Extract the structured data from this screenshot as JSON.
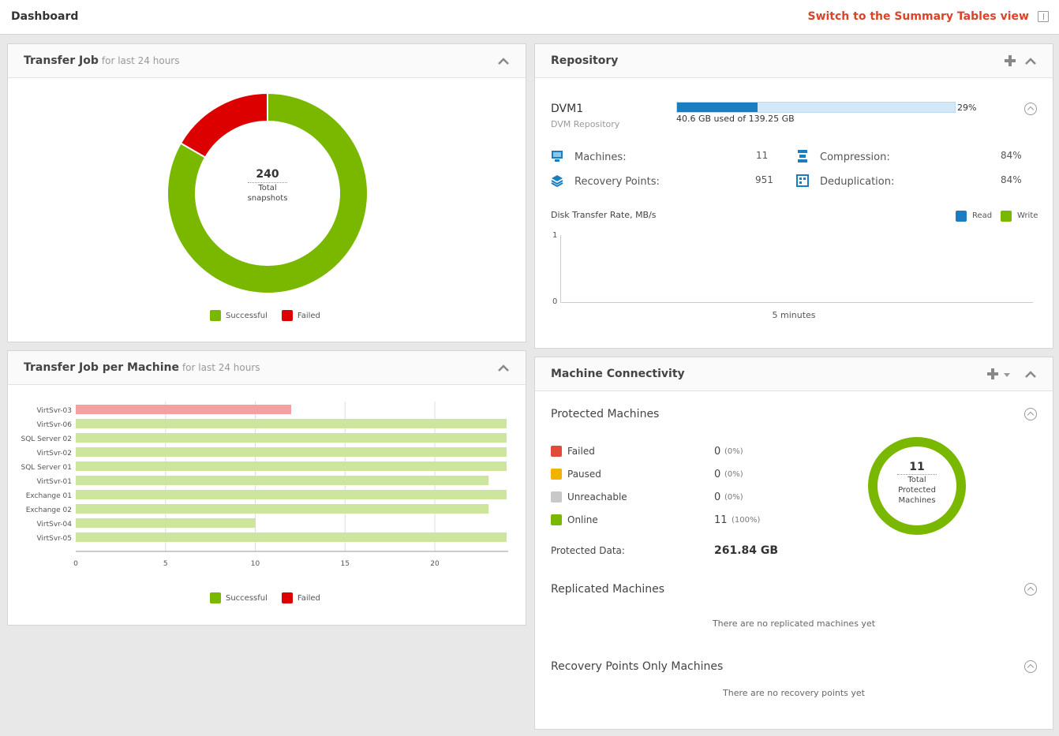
{
  "header": {
    "title": "Dashboard",
    "switch_label": "Switch to the Summary Tables view"
  },
  "transfer_job": {
    "title": "Transfer Job",
    "subtitle": "for last 24 hours",
    "center_value": "240",
    "center_label_1": "Total",
    "center_label_2": "snapshots",
    "legend": [
      "Successful",
      "Failed"
    ],
    "colors": {
      "successful": "#7ab800",
      "failed": "#dc0000"
    }
  },
  "transfer_per_machine": {
    "title": "Transfer Job per Machine",
    "subtitle": "for last 24 hours",
    "legend": [
      "Successful",
      "Failed"
    ]
  },
  "repository": {
    "title": "Repository",
    "name": "DVM1",
    "type": "DVM Repository",
    "usage_percent_label": "29%",
    "usage_fraction": 0.29,
    "usage_text": "40.6 GB used of 139.25 GB",
    "machines_label": "Machines:",
    "machines_value": "11",
    "recovery_points_label": "Recovery Points:",
    "recovery_points_value": "951",
    "compression_label": "Compression:",
    "compression_value": "84%",
    "dedup_label": "Deduplication:",
    "dedup_value": "84%",
    "rate_title": "Disk Transfer Rate, MB/s",
    "rate_legend_read": "Read",
    "rate_legend_write": "Write",
    "rate_y_top": "1",
    "rate_y_bottom": "0",
    "rate_x_label": "5 minutes"
  },
  "connectivity": {
    "title": "Machine Connectivity",
    "protected_title": "Protected Machines",
    "rows": [
      {
        "label": "Failed",
        "value": "0",
        "pct": "(0%)",
        "color": "#e04b3a"
      },
      {
        "label": "Paused",
        "value": "0",
        "pct": "(0%)",
        "color": "#f0b400"
      },
      {
        "label": "Unreachable",
        "value": "0",
        "pct": "(0%)",
        "color": "#c8c8c8"
      },
      {
        "label": "Online",
        "value": "11",
        "pct": "(100%)",
        "color": "#7ab800"
      }
    ],
    "protected_data_label": "Protected Data:",
    "protected_data_value": "261.84 GB",
    "donut_value": "11",
    "donut_label_1": "Total",
    "donut_label_2": "Protected",
    "donut_label_3": "Machines",
    "replicated_title": "Replicated Machines",
    "replicated_empty": "There are no replicated machines yet",
    "rp_only_title": "Recovery Points Only Machines",
    "rp_only_empty": "There are no recovery points yet"
  },
  "chart_data": [
    {
      "type": "pie",
      "title": "",
      "categories": [
        "Successful",
        "Failed"
      ],
      "values": [
        200,
        40
      ],
      "total": 240,
      "colors": [
        "#7ab800",
        "#dc0000"
      ],
      "legend": "bottom"
    },
    {
      "type": "bar",
      "orientation": "horizontal",
      "categories": [
        "VirtSvr-03",
        "VirtSvr-06",
        "SQL Server 02",
        "VirtSvr-02",
        "SQL Server 01",
        "VirtSvr-01",
        "Exchange 01",
        "Exchange 02",
        "VirtSvr-04",
        "VirtSvr-05"
      ],
      "series": [
        {
          "name": "Successful",
          "values": [
            0,
            24,
            24,
            24,
            24,
            23,
            24,
            23,
            10,
            24
          ]
        },
        {
          "name": "Failed",
          "values": [
            12,
            0,
            0,
            0,
            0,
            0,
            0,
            0,
            0,
            0
          ]
        }
      ],
      "xticks": [
        "0",
        "5",
        "10",
        "15",
        "20"
      ],
      "xlim": [
        0,
        24
      ],
      "grid": true,
      "legend": "bottom",
      "colors": {
        "Successful": "#cde59c",
        "Failed": "#f4a0a0"
      }
    },
    {
      "type": "line",
      "title": "Disk Transfer Rate, MB/s",
      "series": [
        {
          "name": "Read",
          "values": []
        },
        {
          "name": "Write",
          "values": []
        }
      ],
      "ylim": [
        0,
        1
      ],
      "xlabel": "5 minutes",
      "legend": "top-right"
    }
  ]
}
